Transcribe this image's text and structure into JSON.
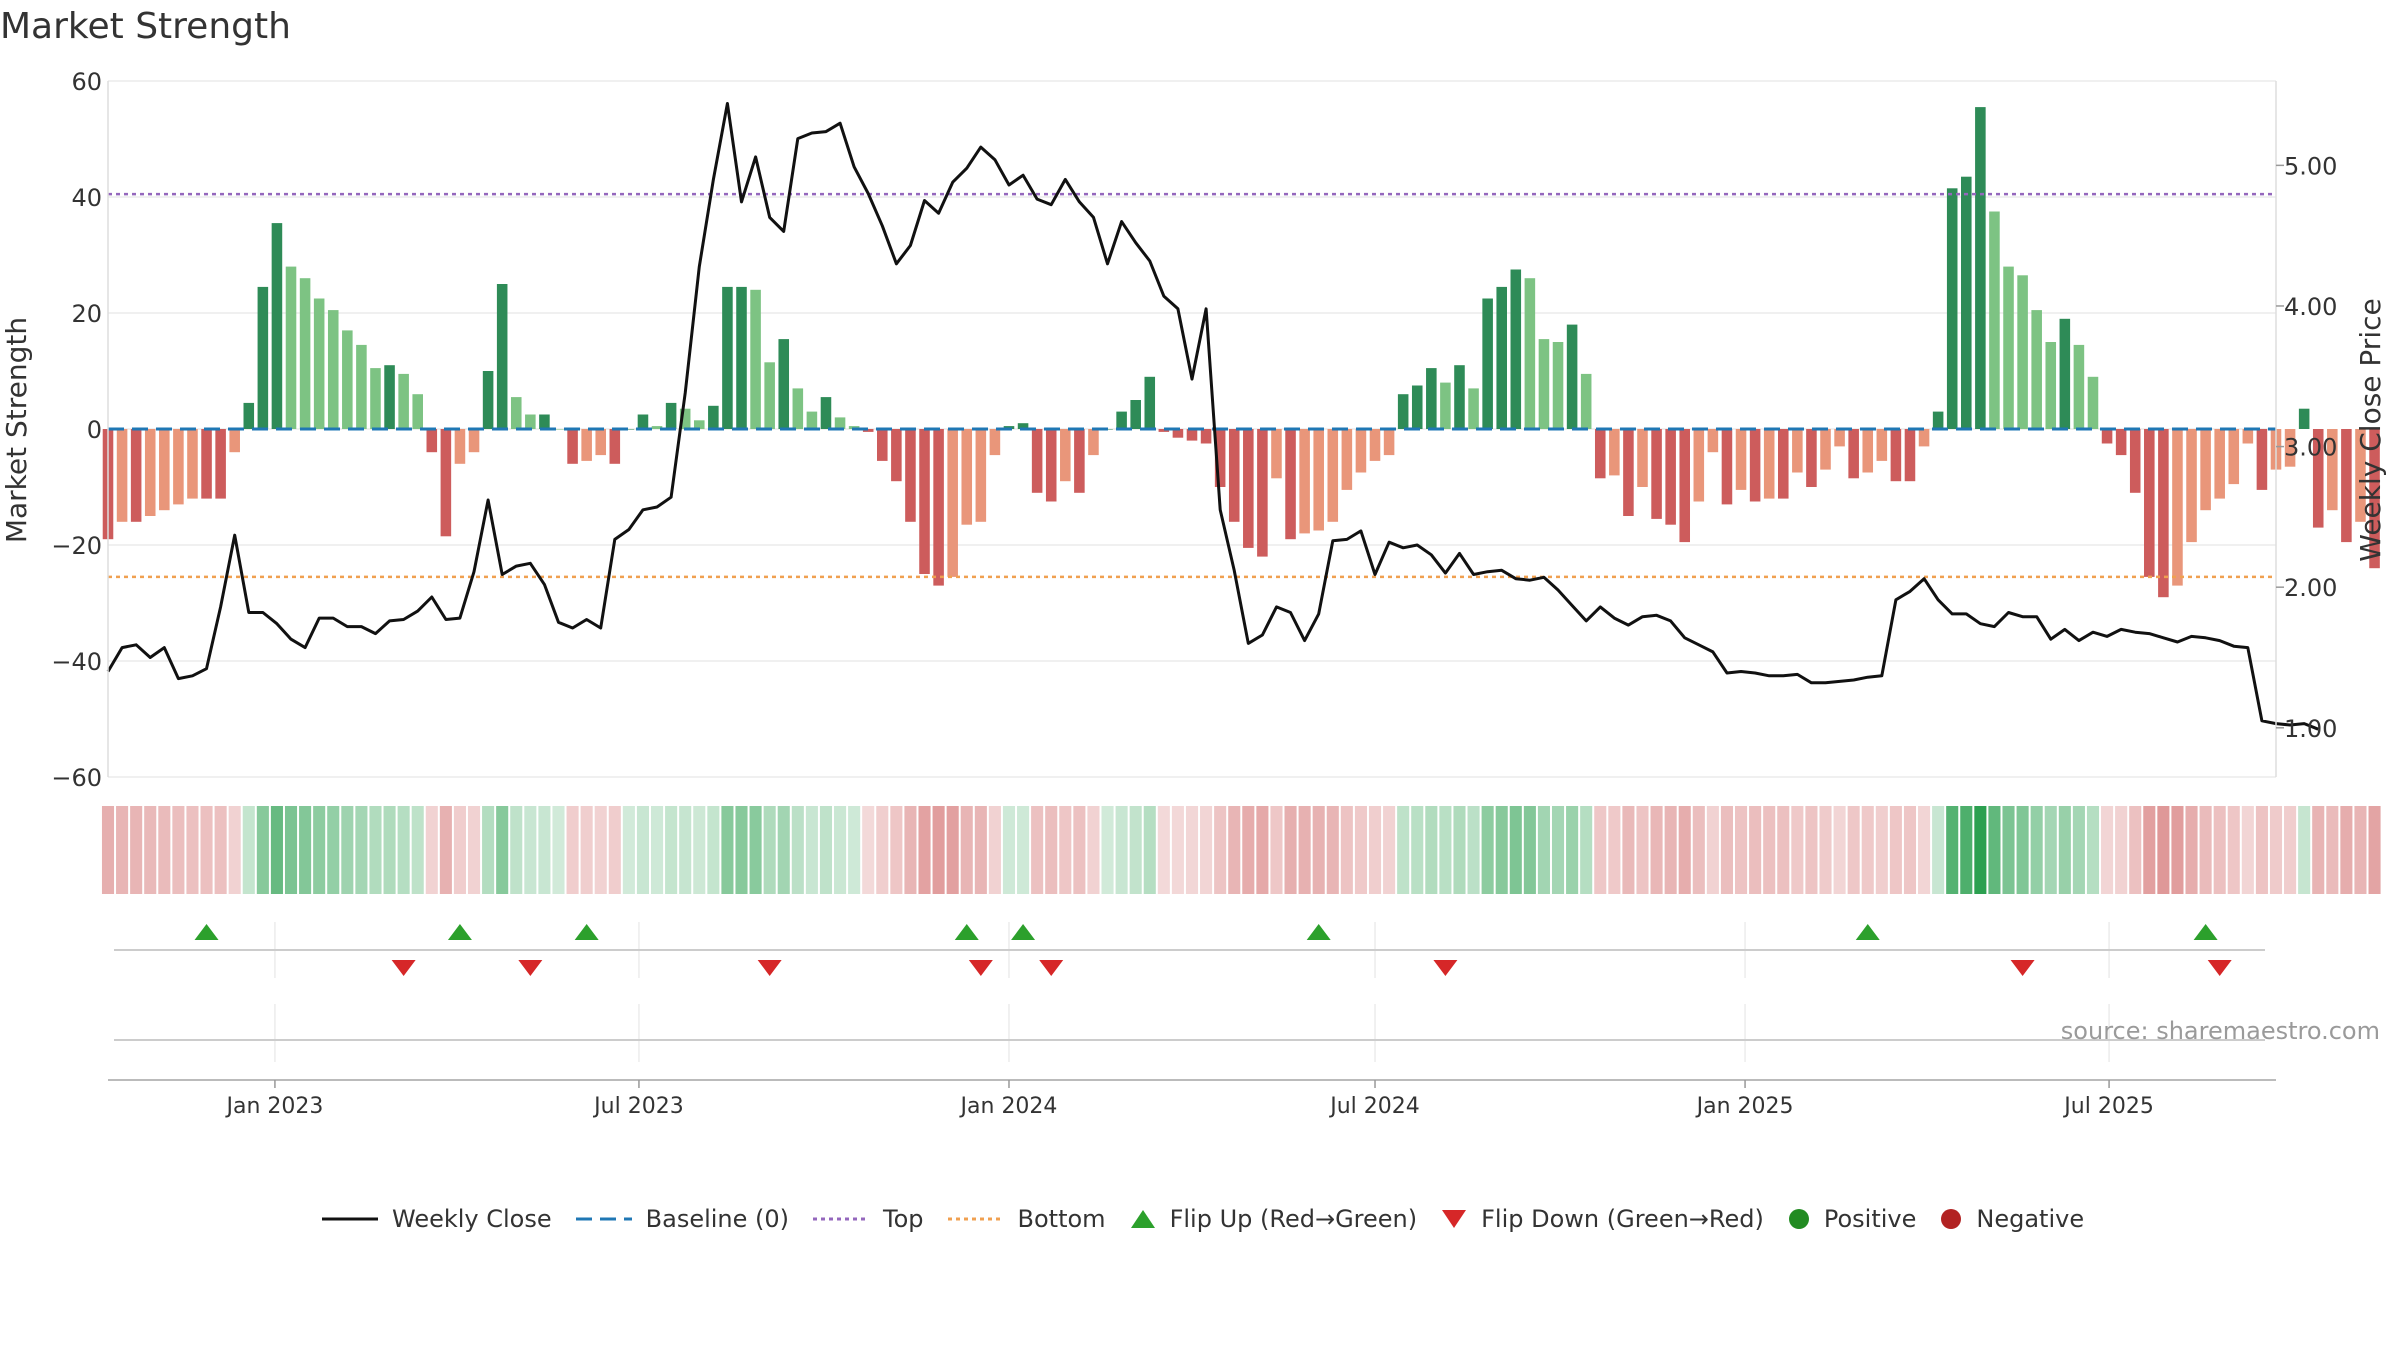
{
  "chart_data": {
    "type": "bar",
    "title": "Market Strength",
    "ylabel": "Market Strength",
    "y2label": "Weekly Close Price",
    "ylim": [
      -60,
      60
    ],
    "y2lim": [
      0.65,
      5.6
    ],
    "yticks": [
      60,
      40,
      20,
      0,
      -20,
      -40,
      -60
    ],
    "yticks_labels": [
      "60",
      "40",
      "20",
      "0",
      "−20",
      "−40",
      "−60"
    ],
    "y2ticks": [
      1.0,
      2.0,
      3.0,
      4.0,
      5.0
    ],
    "y2ticks_labels": [
      "1.00",
      "2.00",
      "3.00",
      "4.00",
      "5.00"
    ],
    "x_range": [
      "2022-10-10",
      "2025-09-22"
    ],
    "x_ticks": [
      {
        "date": "2023-01-01",
        "label": "Jan 2023"
      },
      {
        "date": "2023-07-01",
        "label": "Jul 2023"
      },
      {
        "date": "2024-01-01",
        "label": "Jan 2024"
      },
      {
        "date": "2024-07-01",
        "label": "Jul 2024"
      },
      {
        "date": "2025-01-01",
        "label": "Jan 2025"
      },
      {
        "date": "2025-07-01",
        "label": "Jul 2025"
      }
    ],
    "top_threshold": 40.5,
    "bottom_threshold": -25.5,
    "grid": true,
    "strength_start": "2022-10-10",
    "strength_values": [
      -19,
      -16,
      -16,
      -15,
      -14,
      -13,
      -12,
      -12,
      -12,
      -4,
      4.5,
      24.5,
      35.5,
      28,
      26,
      22.5,
      20.5,
      17,
      14.5,
      10.5,
      11,
      9.5,
      6,
      -4,
      -18.5,
      -6,
      -4,
      10,
      25,
      5.5,
      2.5,
      2.5,
      0,
      -6,
      -5.5,
      -4.5,
      -6,
      0,
      2.5,
      0.5,
      4.5,
      3.5,
      1.5,
      4,
      24.5,
      24.5,
      24,
      11.5,
      15.5,
      7,
      3,
      5.5,
      2,
      0.5,
      -0.5,
      -5.5,
      -9,
      -16,
      -25,
      -27,
      -25.5,
      -16.5,
      -16,
      -4.5,
      0.5,
      1,
      -11,
      -12.5,
      -9,
      -11,
      -4.5,
      0,
      3,
      5,
      9,
      -0.5,
      -1.5,
      -2,
      -2.5,
      -10,
      -16,
      -20.5,
      -22,
      -8.5,
      -19,
      -18,
      -17.5,
      -16,
      -10.5,
      -7.5,
      -5.5,
      -4.5,
      6,
      7.5,
      10.5,
      8,
      11,
      7,
      22.5,
      24.5,
      27.5,
      26,
      15.5,
      15,
      18,
      9.5,
      -8.5,
      -8,
      -15,
      -10,
      -15.5,
      -16.5,
      -19.5,
      -12.5,
      -4,
      -13,
      -10.5,
      -12.5,
      -12,
      -12,
      -7.5,
      -10,
      -7,
      -3,
      -8.5,
      -7.5,
      -5.5,
      -9,
      -9,
      -3,
      3,
      41.5,
      43.5,
      55.5,
      37.5,
      28,
      26.5,
      20.5,
      15,
      19,
      14.5,
      9,
      -2.5,
      -4.5,
      -11,
      -25.5,
      -29,
      -27,
      -19.5,
      -14,
      -12,
      -9.5,
      -2.5,
      -10.5,
      -7,
      -6.5,
      3.5,
      -17,
      -14,
      -19.5,
      -16,
      -24
    ],
    "close_values": [
      1.4,
      1.57,
      1.59,
      1.5,
      1.57,
      1.35,
      1.37,
      1.42,
      1.86,
      2.37,
      1.82,
      1.82,
      1.74,
      1.63,
      1.57,
      1.78,
      1.78,
      1.72,
      1.72,
      1.67,
      1.76,
      1.77,
      1.83,
      1.93,
      1.77,
      1.78,
      2.11,
      2.62,
      2.09,
      2.15,
      2.17,
      2.02,
      1.75,
      1.71,
      1.77,
      1.71,
      2.34,
      2.41,
      2.55,
      2.57,
      2.64,
      3.38,
      4.28,
      4.9,
      5.44,
      4.74,
      5.06,
      4.63,
      4.53,
      5.19,
      5.23,
      5.24,
      5.3,
      4.99,
      4.8,
      4.57,
      4.3,
      4.43,
      4.75,
      4.66,
      4.88,
      4.98,
      5.13,
      5.04,
      4.86,
      4.93,
      4.76,
      4.72,
      4.9,
      4.74,
      4.63,
      4.3,
      4.6,
      4.45,
      4.32,
      4.07,
      3.98,
      3.48,
      3.98,
      2.55,
      2.12,
      1.6,
      1.66,
      1.86,
      1.82,
      1.62,
      1.81,
      2.33,
      2.34,
      2.4,
      2.09,
      2.32,
      2.28,
      2.3,
      2.23,
      2.1,
      2.24,
      2.09,
      2.11,
      2.12,
      2.06,
      2.05,
      2.07,
      1.98,
      1.87,
      1.76,
      1.86,
      1.78,
      1.73,
      1.79,
      1.8,
      1.76,
      1.64,
      1.59,
      1.54,
      1.39,
      1.4,
      1.39,
      1.37,
      1.37,
      1.38,
      1.32,
      1.32,
      1.33,
      1.34,
      1.36,
      1.37,
      1.91,
      1.97,
      2.06,
      1.91,
      1.81,
      1.81,
      1.74,
      1.72,
      1.82,
      1.79,
      1.79,
      1.63,
      1.7,
      1.62,
      1.68,
      1.65,
      1.7,
      1.68,
      1.67,
      1.64,
      1.61,
      1.65,
      1.64,
      1.62,
      1.58,
      1.57,
      1.05,
      1.03,
      1.02,
      1.03,
      0.99
    ],
    "flip_up_dates": [
      "2022-11-28",
      "2023-04-03",
      "2023-06-05",
      "2023-12-11",
      "2024-01-08",
      "2024-06-03",
      "2025-03-03",
      "2025-08-18"
    ],
    "flip_down_dates": [
      "2023-03-06",
      "2023-05-08",
      "2023-09-04",
      "2023-12-18",
      "2024-01-22",
      "2024-08-05",
      "2025-05-19",
      "2025-08-25"
    ],
    "legend": [
      "Weekly Close",
      "Baseline (0)",
      "Top",
      "Bottom",
      "Flip Up (Red→Green)",
      "Flip Down (Green→Red)",
      "Positive",
      "Negative"
    ]
  },
  "source_text": "source: sharemaestro.com",
  "colors": {
    "pos_strong": "#2e8b57",
    "pos_weak": "#7dc383",
    "neg_strong": "#cd5c5c",
    "neg_weak": "#e9967a",
    "close_line": "#111111",
    "baseline": "#1f77b4",
    "top_line": "#9467bd",
    "bottom_line": "#f0a050",
    "flip_up": "#2ca02c",
    "flip_down": "#d62728",
    "legend_positive": "#228b22",
    "legend_negative": "#b22222"
  }
}
